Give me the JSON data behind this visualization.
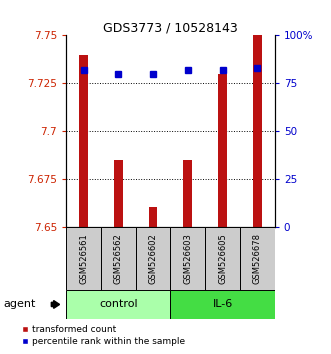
{
  "title": "GDS3773 / 10528143",
  "samples": [
    "GSM526561",
    "GSM526562",
    "GSM526602",
    "GSM526603",
    "GSM526605",
    "GSM526678"
  ],
  "red_values": [
    7.74,
    7.685,
    7.66,
    7.685,
    7.73,
    7.755
  ],
  "blue_values": [
    82,
    80,
    80,
    82,
    82,
    83
  ],
  "ylim_left": [
    7.65,
    7.75
  ],
  "ylim_right": [
    0,
    100
  ],
  "yticks_left": [
    7.65,
    7.675,
    7.7,
    7.725,
    7.75
  ],
  "yticks_right": [
    0,
    25,
    50,
    75,
    100
  ],
  "ytick_labels_right": [
    "0",
    "25",
    "50",
    "75",
    "100%"
  ],
  "grid_lines": [
    7.675,
    7.7,
    7.725
  ],
  "control_color": "#aaffaa",
  "il6_color": "#44dd44",
  "bar_color": "#bb1111",
  "dot_color": "#0000cc",
  "bg_color": "#cccccc",
  "legend_red_label": "transformed count",
  "legend_blue_label": "percentile rank within the sample",
  "agent_label": "agent",
  "control_label": "control",
  "il6_label": "IL-6"
}
